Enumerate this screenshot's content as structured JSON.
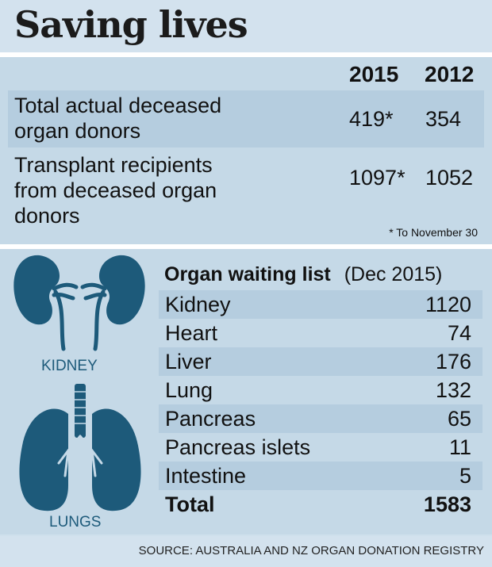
{
  "title": "Saving lives",
  "stats": {
    "columns": [
      "2015",
      "2012"
    ],
    "rows": [
      {
        "label_lines": [
          "Total actual deceased",
          "organ donors"
        ],
        "v2015": "419*",
        "v2012": "354"
      },
      {
        "label_lines": [
          "Transplant recipients",
          "from deceased organ",
          "donors"
        ],
        "v2015": "1097*",
        "v2012": "1052"
      }
    ],
    "footnote": "* To November 30"
  },
  "organs": {
    "kidney_label": "KIDNEY",
    "lungs_label": "LUNGS",
    "icon_color": "#1d5a7a"
  },
  "waiting_list": {
    "title": "Organ waiting list",
    "date": "(Dec 2015)",
    "rows": [
      {
        "name": "Kidney",
        "value": "1120"
      },
      {
        "name": "Heart",
        "value": "74"
      },
      {
        "name": "Liver",
        "value": "176"
      },
      {
        "name": "Lung",
        "value": "132"
      },
      {
        "name": "Pancreas",
        "value": "65"
      },
      {
        "name": "Pancreas islets",
        "value": "11"
      },
      {
        "name": "Intestine",
        "value": "5"
      },
      {
        "name": "Total",
        "value": "1583"
      }
    ]
  },
  "source": "SOURCE: AUSTRALIA AND NZ ORGAN DONATION REGISTRY"
}
